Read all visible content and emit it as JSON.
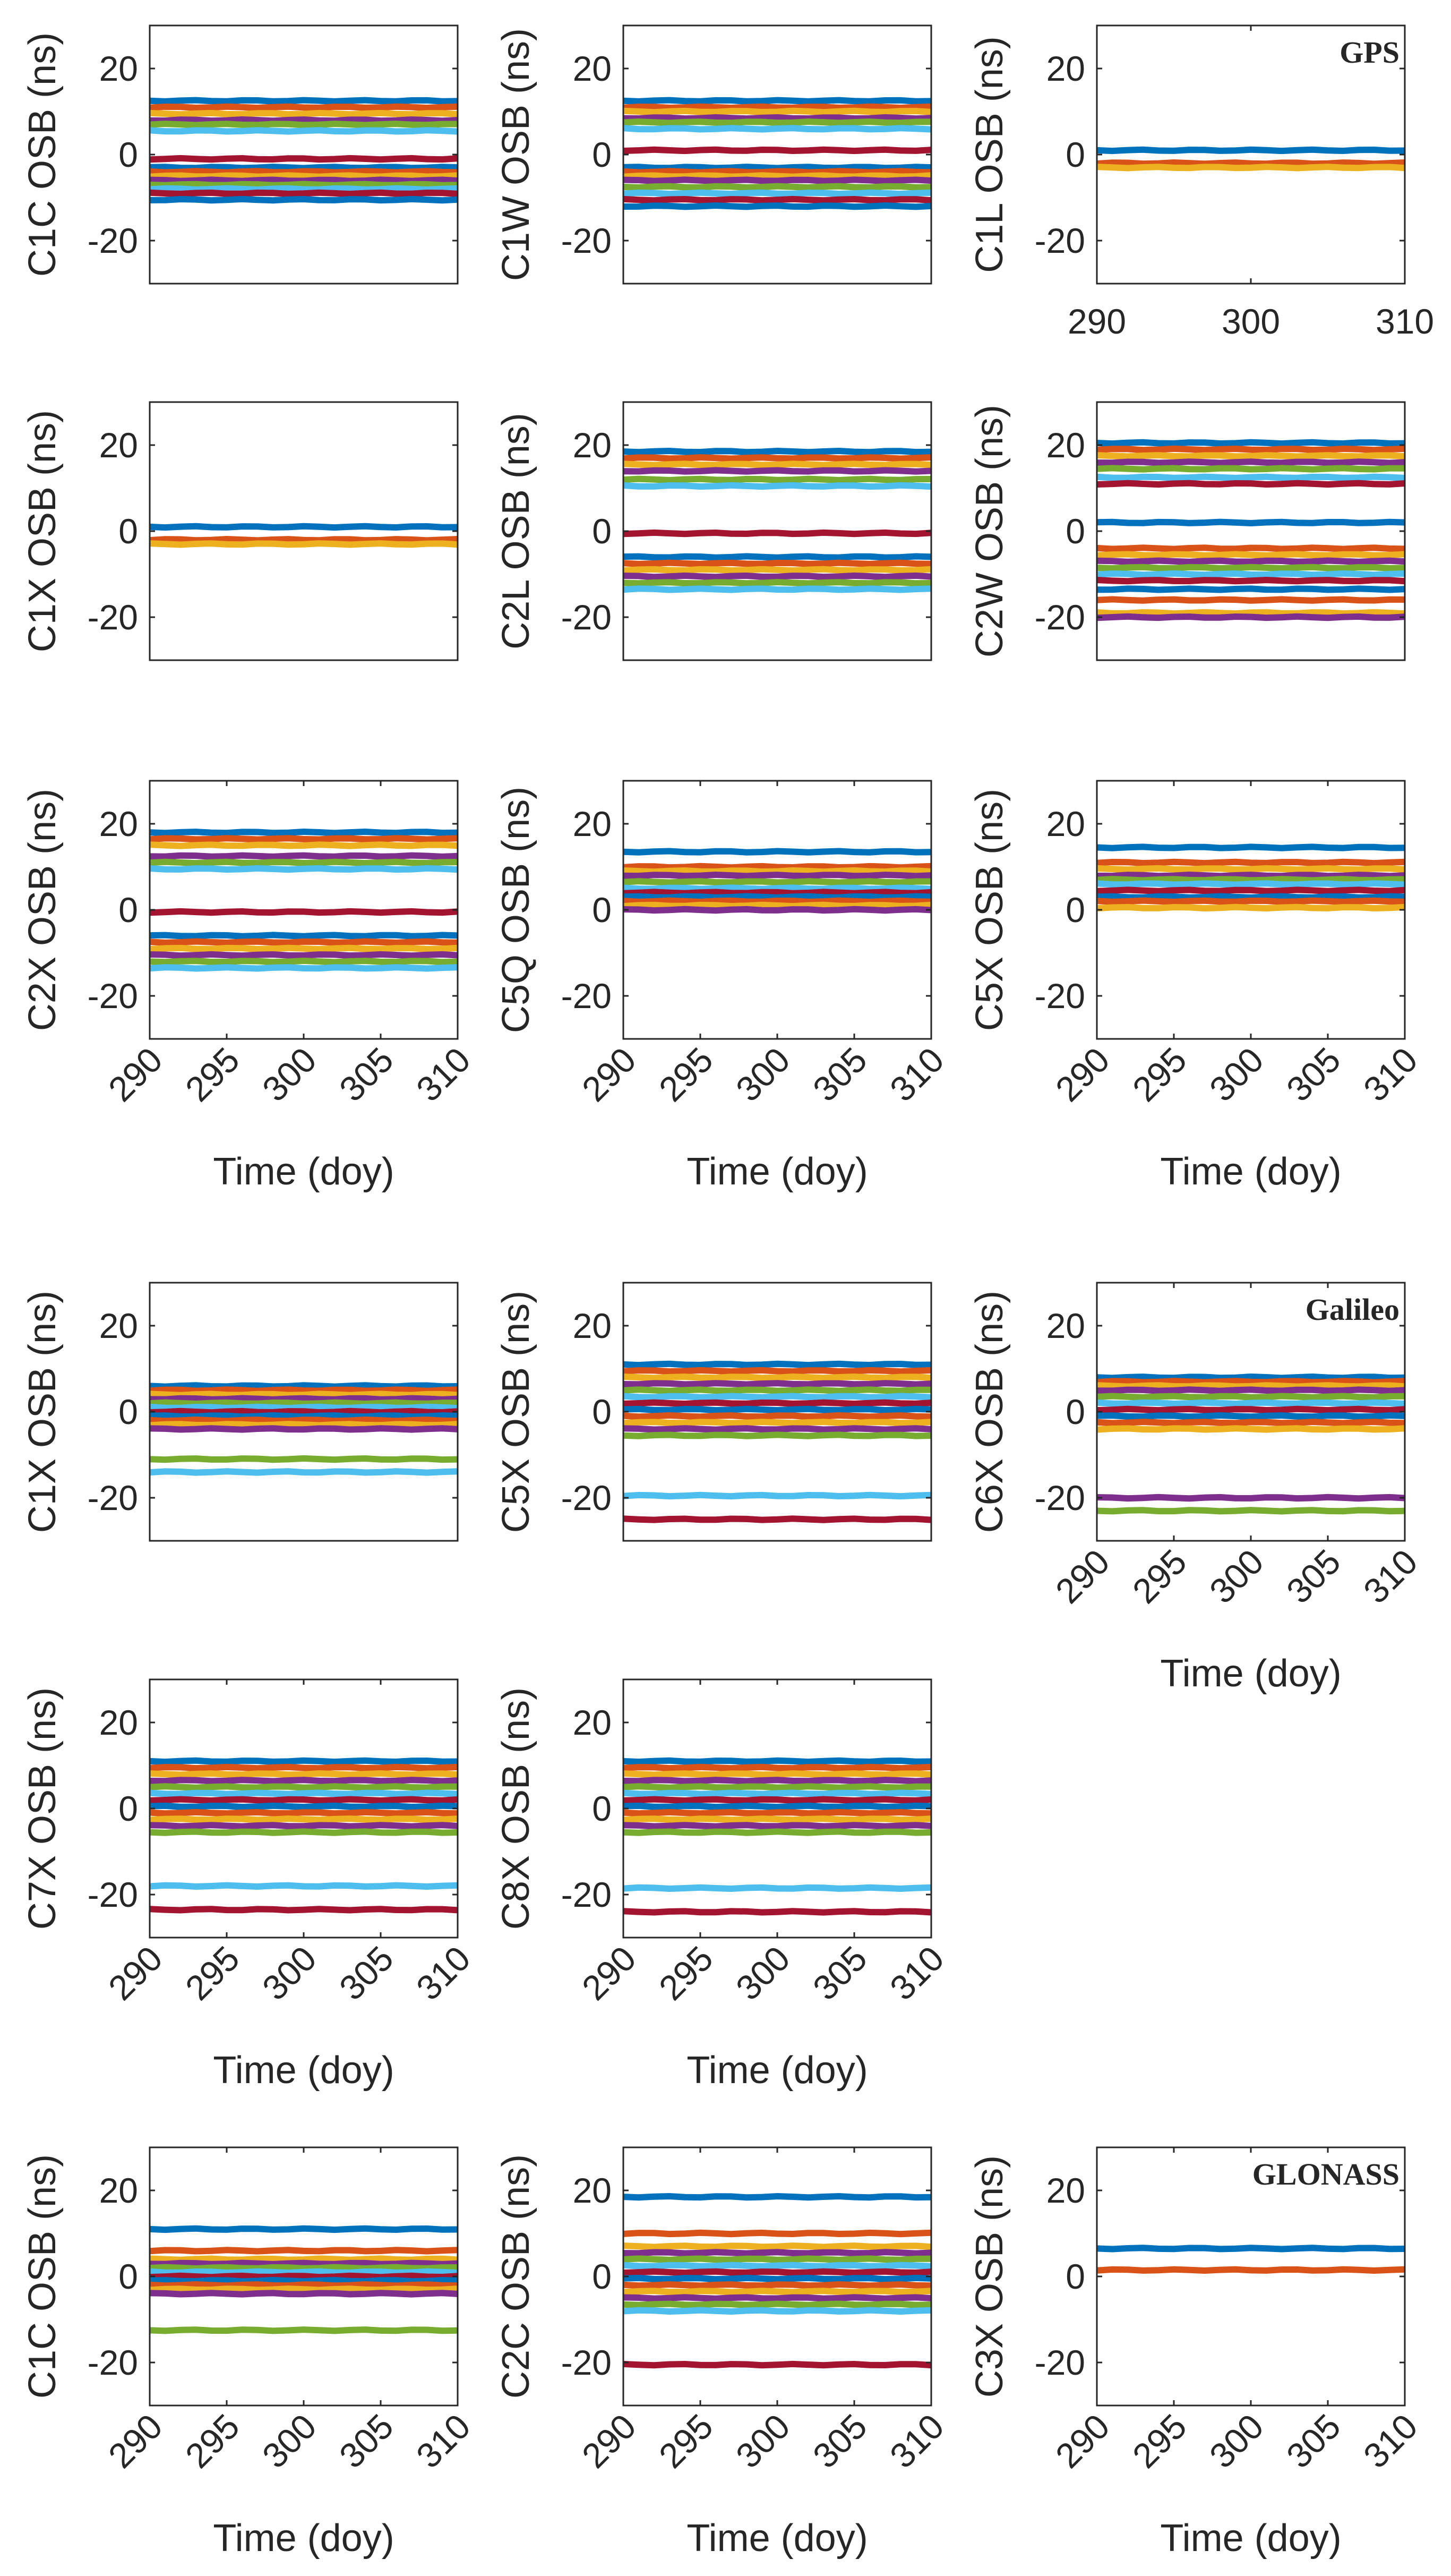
{
  "figure": {
    "colors": [
      "#0072BD",
      "#D95319",
      "#EDB120",
      "#7E2F8E",
      "#77AC30",
      "#4DBEEE",
      "#A2142F"
    ],
    "line_style": "thick constant lines per satellite",
    "grid": false
  },
  "chart_data": [
    {
      "id": "gps_c1c",
      "system": "GPS",
      "type": "line",
      "ylabel": "C1C OSB (ns)",
      "system_label": "",
      "ylim": [
        -30,
        30
      ],
      "yticks": [
        20,
        0,
        -20
      ],
      "xlim": [
        290,
        310
      ],
      "xticks": [],
      "xtick_rotation": 0,
      "xlabel": "",
      "series": [
        {
          "y": 12.5
        },
        {
          "y": 11
        },
        {
          "y": 9.5
        },
        {
          "y": 8
        },
        {
          "y": 7
        },
        {
          "y": 5.5
        },
        {
          "y": -1
        },
        {
          "y": -3
        },
        {
          "y": -4
        },
        {
          "y": -5
        },
        {
          "y": -6
        },
        {
          "y": -7
        },
        {
          "y": -8
        },
        {
          "y": -9
        },
        {
          "y": -10.5
        }
      ]
    },
    {
      "id": "gps_c1w",
      "system": "GPS",
      "type": "line",
      "ylabel": "C1W OSB (ns)",
      "system_label": "",
      "ylim": [
        -30,
        30
      ],
      "yticks": [
        20,
        0,
        -20
      ],
      "xlim": [
        290,
        310
      ],
      "xticks": [],
      "xtick_rotation": 0,
      "xlabel": "",
      "series": [
        {
          "y": 12.5
        },
        {
          "y": 11
        },
        {
          "y": 10
        },
        {
          "y": 8.5
        },
        {
          "y": 7.5
        },
        {
          "y": 6
        },
        {
          "y": 1
        },
        {
          "y": -3
        },
        {
          "y": -4
        },
        {
          "y": -5
        },
        {
          "y": -6
        },
        {
          "y": -7.5
        },
        {
          "y": -9
        },
        {
          "y": -10.5
        },
        {
          "y": -12
        }
      ]
    },
    {
      "id": "gps_c1l",
      "system": "GPS",
      "type": "line",
      "ylabel": "C1L OSB (ns)",
      "system_label": "GPS",
      "ylim": [
        -30,
        30
      ],
      "yticks": [
        20,
        0,
        -20
      ],
      "xlim": [
        290,
        310
      ],
      "xticks": [
        "290",
        "300",
        "310"
      ],
      "xtick_rotation": 0,
      "xlabel": "",
      "series": [
        {
          "y": 1
        },
        {
          "y": -2
        },
        {
          "y": -3
        }
      ]
    },
    {
      "id": "gps_c1x",
      "system": "GPS",
      "type": "line",
      "ylabel": "C1X OSB (ns)",
      "system_label": "",
      "ylim": [
        -30,
        30
      ],
      "yticks": [
        20,
        0,
        -20
      ],
      "xlim": [
        290,
        310
      ],
      "xticks": [],
      "xtick_rotation": 0,
      "xlabel": "",
      "series": [
        {
          "y": 1
        },
        {
          "y": -2
        },
        {
          "y": -3
        }
      ]
    },
    {
      "id": "gps_c2l",
      "system": "GPS",
      "type": "line",
      "ylabel": "C2L OSB (ns)",
      "system_label": "",
      "ylim": [
        -30,
        30
      ],
      "yticks": [
        20,
        0,
        -20
      ],
      "xlim": [
        290,
        310
      ],
      "xticks": [],
      "xtick_rotation": 0,
      "xlabel": "",
      "series": [
        {
          "y": 18.5
        },
        {
          "y": 17
        },
        {
          "y": 15.5
        },
        {
          "y": 14
        },
        {
          "y": 12
        },
        {
          "y": 10.5
        },
        {
          "y": -0.5
        },
        {
          "y": -6
        },
        {
          "y": -7.5
        },
        {
          "y": -9
        },
        {
          "y": -10.5
        },
        {
          "y": -12
        },
        {
          "y": -13.5
        }
      ]
    },
    {
      "id": "gps_c2w",
      "system": "GPS",
      "type": "line",
      "ylabel": "C2W OSB (ns)",
      "system_label": "",
      "ylim": [
        -30,
        30
      ],
      "yticks": [
        20,
        0,
        -20
      ],
      "xlim": [
        290,
        310
      ],
      "xticks": [],
      "xtick_rotation": 0,
      "xlabel": "",
      "series": [
        {
          "y": 20.5
        },
        {
          "y": 19
        },
        {
          "y": 17.5
        },
        {
          "y": 16
        },
        {
          "y": 14.5
        },
        {
          "y": 12.5
        },
        {
          "y": 11
        },
        {
          "y": 2
        },
        {
          "y": -4
        },
        {
          "y": -5.5
        },
        {
          "y": -7
        },
        {
          "y": -8.5
        },
        {
          "y": -10
        },
        {
          "y": -11.5
        },
        {
          "y": -13.5
        },
        {
          "y": -16
        },
        {
          "y": -19
        },
        {
          "y": -20
        }
      ]
    },
    {
      "id": "gps_c2x",
      "system": "GPS",
      "type": "line",
      "ylabel": "C2X OSB (ns)",
      "system_label": "",
      "ylim": [
        -30,
        30
      ],
      "yticks": [
        20,
        0,
        -20
      ],
      "xlim": [
        290,
        310
      ],
      "xticks": [
        "290",
        "295",
        "300",
        "305",
        "310"
      ],
      "xtick_rotation": -45,
      "xlabel": "Time (doy)",
      "series": [
        {
          "y": 18
        },
        {
          "y": 16.5
        },
        {
          "y": 15
        },
        {
          "y": 12.5
        },
        {
          "y": 11
        },
        {
          "y": 9.5
        },
        {
          "y": -0.5
        },
        {
          "y": -6
        },
        {
          "y": -7.5
        },
        {
          "y": -9
        },
        {
          "y": -10.5
        },
        {
          "y": -12
        },
        {
          "y": -13.5
        }
      ]
    },
    {
      "id": "gps_c5q",
      "system": "GPS",
      "type": "line",
      "ylabel": "C5Q OSB (ns)",
      "system_label": "",
      "ylim": [
        -30,
        30
      ],
      "yticks": [
        20,
        0,
        -20
      ],
      "xlim": [
        290,
        310
      ],
      "xticks": [
        "290",
        "295",
        "300",
        "305",
        "310"
      ],
      "xtick_rotation": -45,
      "xlabel": "Time (doy)",
      "series": [
        {
          "y": 13.5
        },
        {
          "y": 10
        },
        {
          "y": 9
        },
        {
          "y": 8
        },
        {
          "y": 6.5
        },
        {
          "y": 5
        },
        {
          "y": 4
        },
        {
          "y": 3
        },
        {
          "y": 2
        },
        {
          "y": 1
        },
        {
          "y": 0
        }
      ]
    },
    {
      "id": "gps_c5x",
      "system": "GPS",
      "type": "line",
      "ylabel": "C5X OSB (ns)",
      "system_label": "",
      "ylim": [
        -30,
        30
      ],
      "yticks": [
        20,
        0,
        -20
      ],
      "xlim": [
        290,
        310
      ],
      "xticks": [
        "290",
        "295",
        "300",
        "305",
        "310"
      ],
      "xtick_rotation": -45,
      "xlabel": "Time (doy)",
      "series": [
        {
          "y": 14.5
        },
        {
          "y": 11
        },
        {
          "y": 9.5
        },
        {
          "y": 8
        },
        {
          "y": 7
        },
        {
          "y": 6
        },
        {
          "y": 4.5
        },
        {
          "y": 3
        },
        {
          "y": 2
        },
        {
          "y": 0.5
        }
      ]
    },
    {
      "id": "gal_c1x",
      "system": "Galileo",
      "type": "line",
      "ylabel": "C1X OSB (ns)",
      "system_label": "",
      "ylim": [
        -30,
        30
      ],
      "yticks": [
        20,
        0,
        -20
      ],
      "xlim": [
        290,
        310
      ],
      "xticks": [],
      "xtick_rotation": 0,
      "xlabel": "",
      "series": [
        {
          "y": 6
        },
        {
          "y": 5
        },
        {
          "y": 4
        },
        {
          "y": 3
        },
        {
          "y": 2
        },
        {
          "y": 1
        },
        {
          "y": 0
        },
        {
          "y": -1
        },
        {
          "y": -2
        },
        {
          "y": -3
        },
        {
          "y": -4
        },
        {
          "y": -11
        },
        {
          "y": -14
        }
      ]
    },
    {
      "id": "gal_c5x",
      "system": "Galileo",
      "type": "line",
      "ylabel": "C5X OSB (ns)",
      "system_label": "",
      "ylim": [
        -30,
        30
      ],
      "yticks": [
        20,
        0,
        -20
      ],
      "xlim": [
        290,
        310
      ],
      "xticks": [],
      "xtick_rotation": 0,
      "xlabel": "",
      "series": [
        {
          "y": 11
        },
        {
          "y": 9.5
        },
        {
          "y": 8
        },
        {
          "y": 6.5
        },
        {
          "y": 5
        },
        {
          "y": 3.5
        },
        {
          "y": 2
        },
        {
          "y": 0.5
        },
        {
          "y": -1
        },
        {
          "y": -2.5
        },
        {
          "y": -4
        },
        {
          "y": -5.5
        },
        {
          "y": -19.5
        },
        {
          "y": -25
        }
      ]
    },
    {
      "id": "gal_c6x",
      "system": "Galileo",
      "type": "line",
      "ylabel": "C6X OSB (ns)",
      "system_label": "Galileo",
      "ylim": [
        -30,
        30
      ],
      "yticks": [
        20,
        0,
        -20
      ],
      "xlim": [
        290,
        310
      ],
      "xticks": [
        "290",
        "295",
        "300",
        "305",
        "310"
      ],
      "xtick_rotation": -45,
      "xlabel": "Time (doy)",
      "series": [
        {
          "y": 8
        },
        {
          "y": 7
        },
        {
          "y": 6
        },
        {
          "y": 5
        },
        {
          "y": 3.5
        },
        {
          "y": 2
        },
        {
          "y": 0.5
        },
        {
          "y": -1
        },
        {
          "y": -2.5
        },
        {
          "y": -4
        },
        {
          "y": -20
        },
        {
          "y": -23
        }
      ]
    },
    {
      "id": "gal_c7x",
      "system": "Galileo",
      "type": "line",
      "ylabel": "C7X OSB (ns)",
      "system_label": "",
      "ylim": [
        -30,
        30
      ],
      "yticks": [
        20,
        0,
        -20
      ],
      "xlim": [
        290,
        310
      ],
      "xticks": [
        "290",
        "295",
        "300",
        "305",
        "310"
      ],
      "xtick_rotation": -45,
      "xlabel": "Time (doy)",
      "series": [
        {
          "y": 11
        },
        {
          "y": 9.5
        },
        {
          "y": 8
        },
        {
          "y": 6.5
        },
        {
          "y": 5
        },
        {
          "y": 3.5
        },
        {
          "y": 2
        },
        {
          "y": 0.5
        },
        {
          "y": -1
        },
        {
          "y": -2.5
        },
        {
          "y": -4
        },
        {
          "y": -5.5
        },
        {
          "y": -18
        },
        {
          "y": -23.5
        }
      ]
    },
    {
      "id": "gal_c8x",
      "system": "Galileo",
      "type": "line",
      "ylabel": "C8X OSB (ns)",
      "system_label": "",
      "ylim": [
        -30,
        30
      ],
      "yticks": [
        20,
        0,
        -20
      ],
      "xlim": [
        290,
        310
      ],
      "xticks": [
        "290",
        "295",
        "300",
        "305",
        "310"
      ],
      "xtick_rotation": -45,
      "xlabel": "Time (doy)",
      "series": [
        {
          "y": 11
        },
        {
          "y": 9.5
        },
        {
          "y": 8
        },
        {
          "y": 6.5
        },
        {
          "y": 5
        },
        {
          "y": 3.5
        },
        {
          "y": 2
        },
        {
          "y": 0.5
        },
        {
          "y": -1
        },
        {
          "y": -2.5
        },
        {
          "y": -4
        },
        {
          "y": -5.5
        },
        {
          "y": -18.5
        },
        {
          "y": -24
        }
      ]
    },
    {
      "id": "glo_c1c",
      "system": "GLONASS",
      "type": "line",
      "ylabel": "C1C OSB (ns)",
      "system_label": "",
      "ylim": [
        -30,
        30
      ],
      "yticks": [
        20,
        0,
        -20
      ],
      "xlim": [
        290,
        310
      ],
      "xticks": [
        "290",
        "295",
        "300",
        "305",
        "310"
      ],
      "xtick_rotation": -45,
      "xlabel": "Time (doy)",
      "series": [
        {
          "y": 11
        },
        {
          "y": 6
        },
        {
          "y": 4
        },
        {
          "y": 3
        },
        {
          "y": 2
        },
        {
          "y": 1
        },
        {
          "y": 0
        },
        {
          "y": -1
        },
        {
          "y": -2
        },
        {
          "y": -3
        },
        {
          "y": -4
        },
        {
          "y": -12.5
        }
      ]
    },
    {
      "id": "glo_c2c",
      "system": "GLONASS",
      "type": "line",
      "ylabel": "C2C OSB (ns)",
      "system_label": "",
      "ylim": [
        -30,
        30
      ],
      "yticks": [
        20,
        0,
        -20
      ],
      "xlim": [
        290,
        310
      ],
      "xticks": [
        "290",
        "295",
        "300",
        "305",
        "310"
      ],
      "xtick_rotation": -45,
      "xlabel": "Time (doy)",
      "series": [
        {
          "y": 18.5
        },
        {
          "y": 10
        },
        {
          "y": 7
        },
        {
          "y": 5.5
        },
        {
          "y": 4
        },
        {
          "y": 2.5
        },
        {
          "y": 1
        },
        {
          "y": -0.5
        },
        {
          "y": -2
        },
        {
          "y": -3.5
        },
        {
          "y": -5
        },
        {
          "y": -6.5
        },
        {
          "y": -8
        },
        {
          "y": -20.5
        }
      ]
    },
    {
      "id": "glo_c3x",
      "system": "GLONASS",
      "type": "line",
      "ylabel": "C3X OSB (ns)",
      "system_label": "GLONASS",
      "ylim": [
        -30,
        30
      ],
      "yticks": [
        20,
        0,
        -20
      ],
      "xlim": [
        290,
        310
      ],
      "xticks": [
        "290",
        "295",
        "300",
        "305",
        "310"
      ],
      "xtick_rotation": -45,
      "xlabel": "Time (doy)",
      "series": [
        {
          "y": 6.5
        },
        {
          "y": 1.5
        }
      ]
    }
  ]
}
